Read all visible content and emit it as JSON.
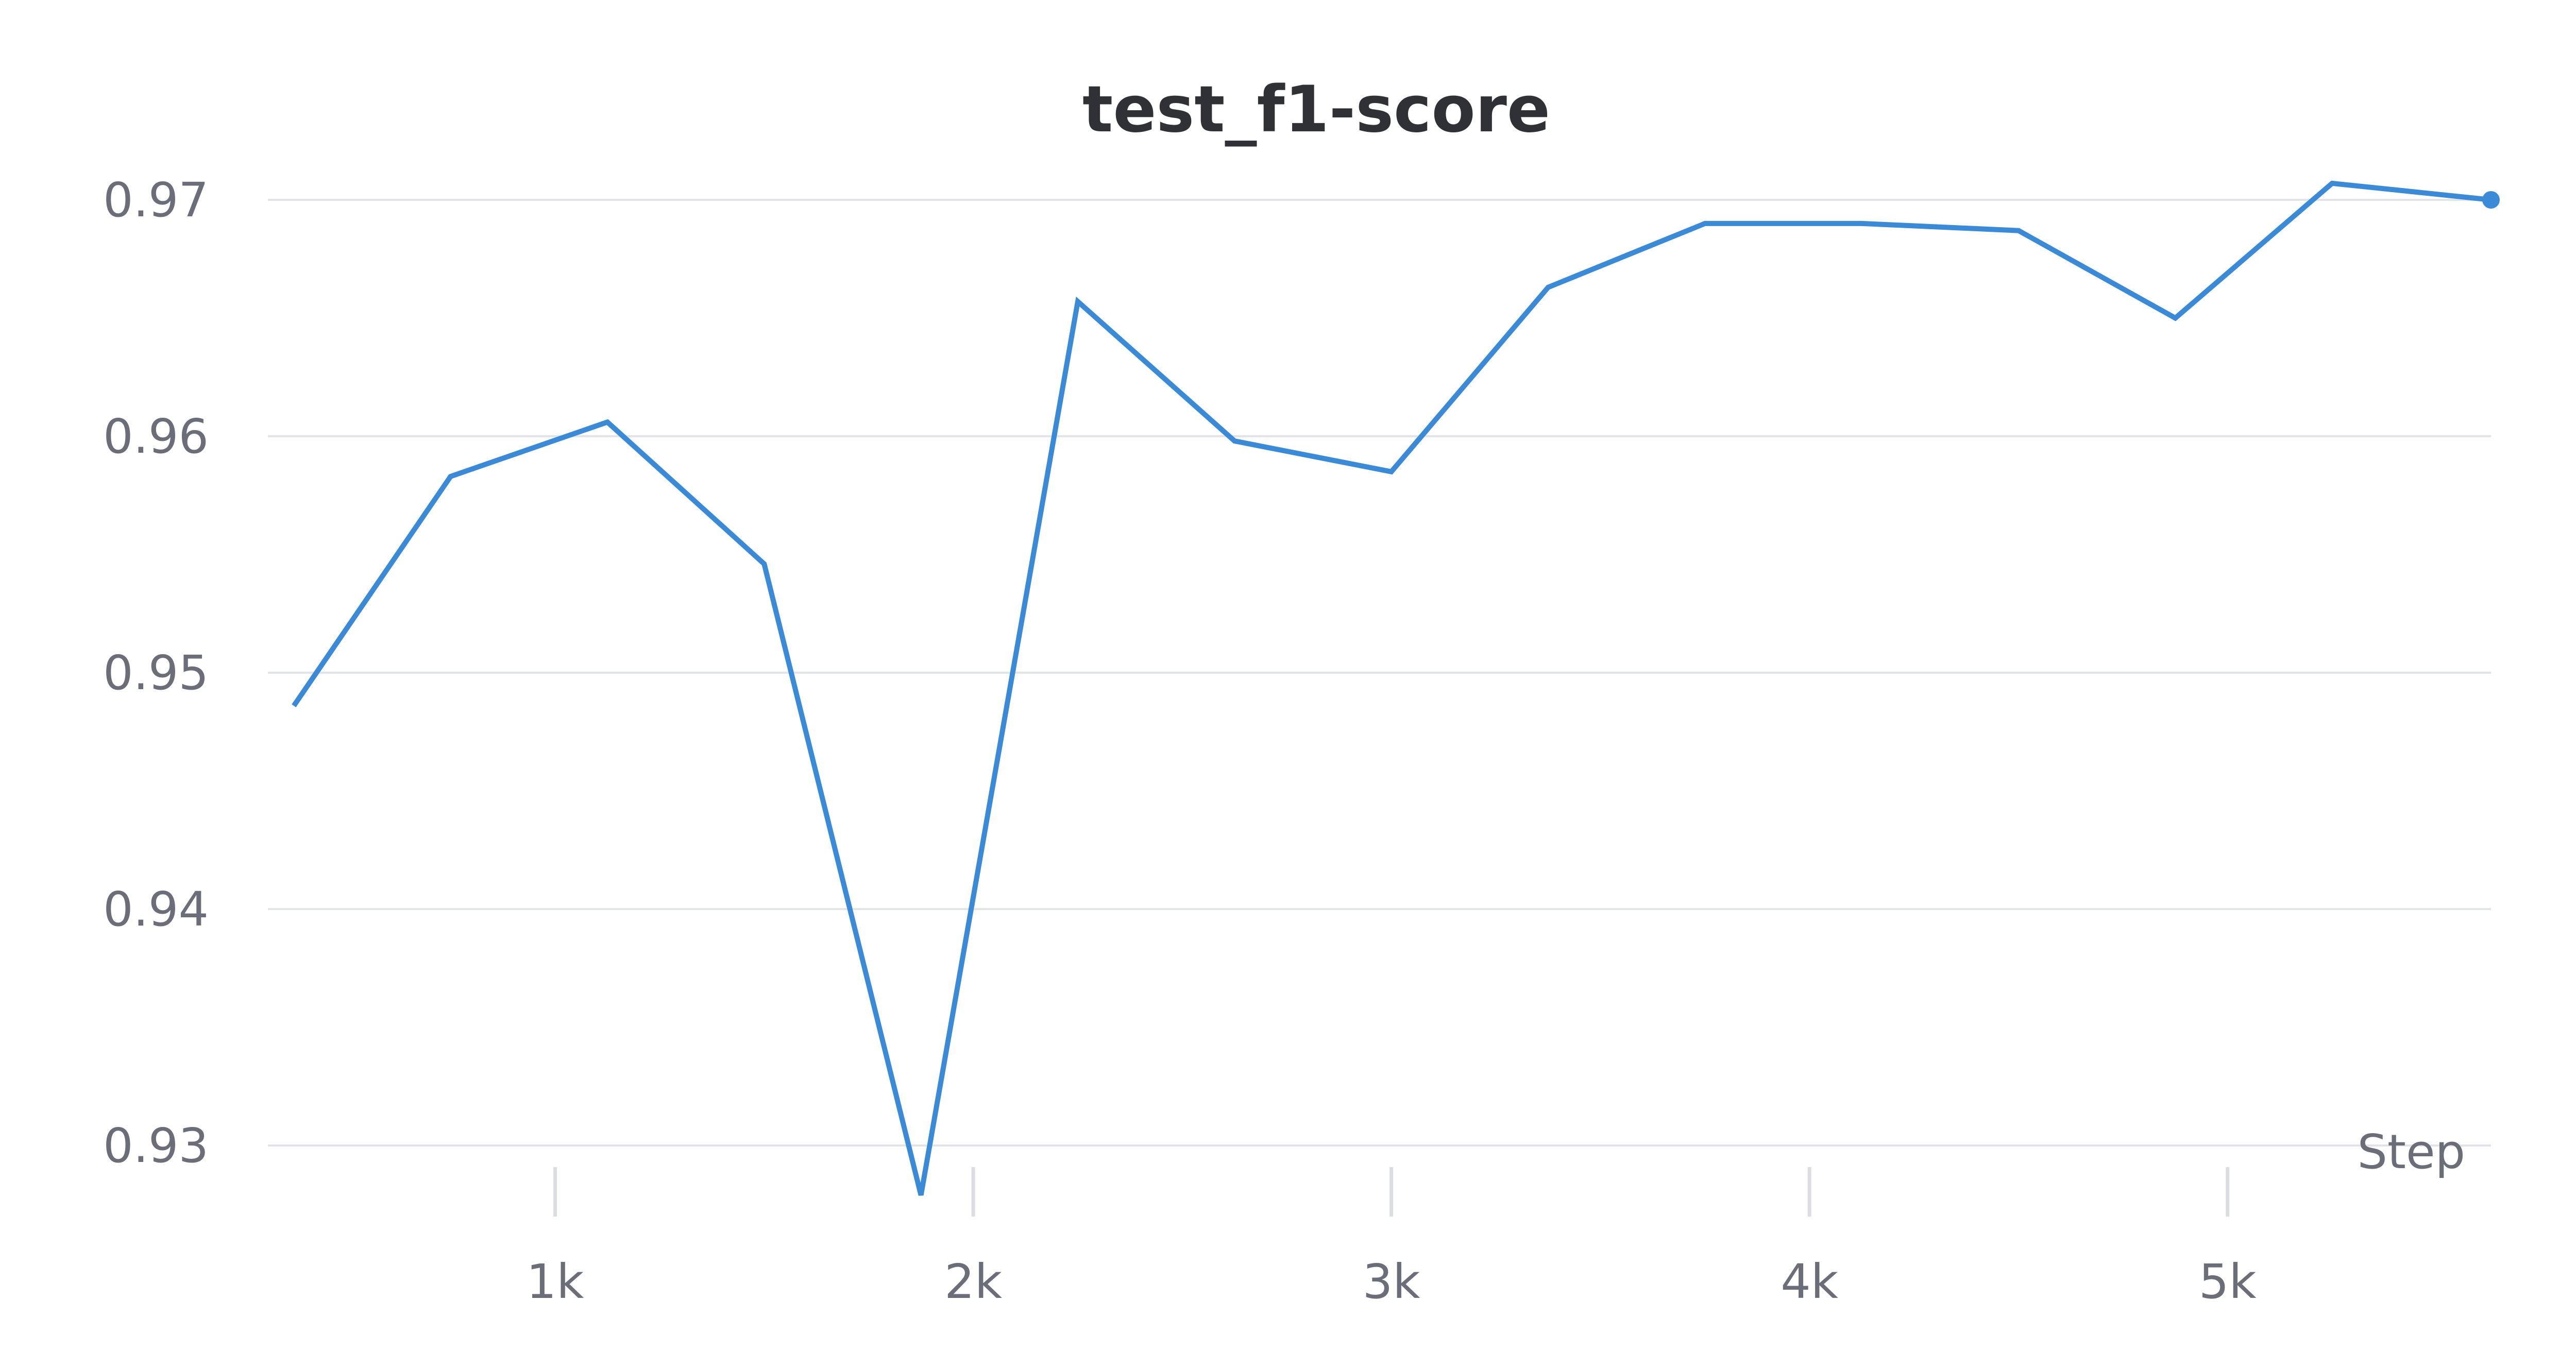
{
  "chart_data": {
    "type": "line",
    "title": "test_f1-score",
    "xlabel": "Step",
    "ylabel": "",
    "xlim": [
      313,
      5630
    ],
    "ylim": [
      0.93,
      0.97
    ],
    "grid": true,
    "legend": "none",
    "x_ticks": [
      1000,
      2000,
      3000,
      4000,
      5000
    ],
    "x_tick_labels": [
      "1k",
      "2k",
      "3k",
      "4k",
      "5k"
    ],
    "y_ticks": [
      0.93,
      0.94,
      0.95,
      0.96,
      0.97
    ],
    "y_tick_labels": [
      "0.93",
      "0.94",
      "0.95",
      "0.96",
      "0.97"
    ],
    "series": [
      {
        "color": "#3a8ad8",
        "end_marker": true,
        "x": [
          375,
          750,
          1125,
          1500,
          1875,
          2250,
          2625,
          3000,
          3375,
          3750,
          4125,
          4500,
          4875,
          5250,
          5630
        ],
        "y": [
          0.9486,
          0.9583,
          0.9606,
          0.9546,
          0.9279,
          0.9657,
          0.9598,
          0.9585,
          0.9663,
          0.969,
          0.969,
          0.9687,
          0.965,
          0.9707,
          0.97
        ]
      }
    ]
  }
}
